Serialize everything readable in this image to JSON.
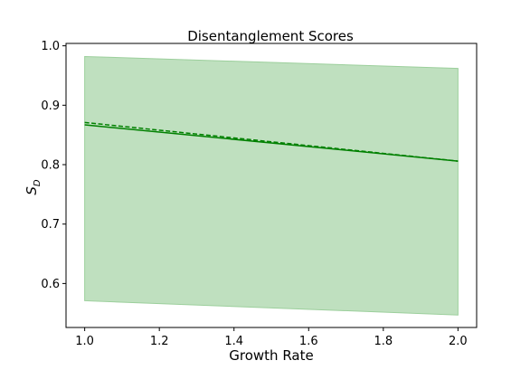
{
  "chart_data": {
    "type": "line",
    "title": "Disentanglement Scores",
    "xlabel": "Growth Rate",
    "ylabel_base": "S",
    "ylabel_sub": "D",
    "xlim": [
      0.95,
      2.05
    ],
    "ylim": [
      0.526,
      1.004
    ],
    "x_ticks": [
      "1.0",
      "1.2",
      "1.4",
      "1.6",
      "1.8",
      "2.0"
    ],
    "y_ticks": [
      "0.6",
      "0.7",
      "0.8",
      "0.9",
      "1.0"
    ],
    "x": [
      1.0,
      2.0
    ],
    "band": {
      "upper": [
        0.982,
        0.962
      ],
      "lower": [
        0.571,
        0.547
      ]
    },
    "series": [
      {
        "values": [
          0.867,
          0.806
        ],
        "style": "solid"
      },
      {
        "values": [
          0.871,
          0.806
        ],
        "style": "dashed"
      }
    ],
    "colors": {
      "line": "#008000",
      "band_fill": "#bfe0bf",
      "band_edge": "#9ccf9c"
    }
  }
}
